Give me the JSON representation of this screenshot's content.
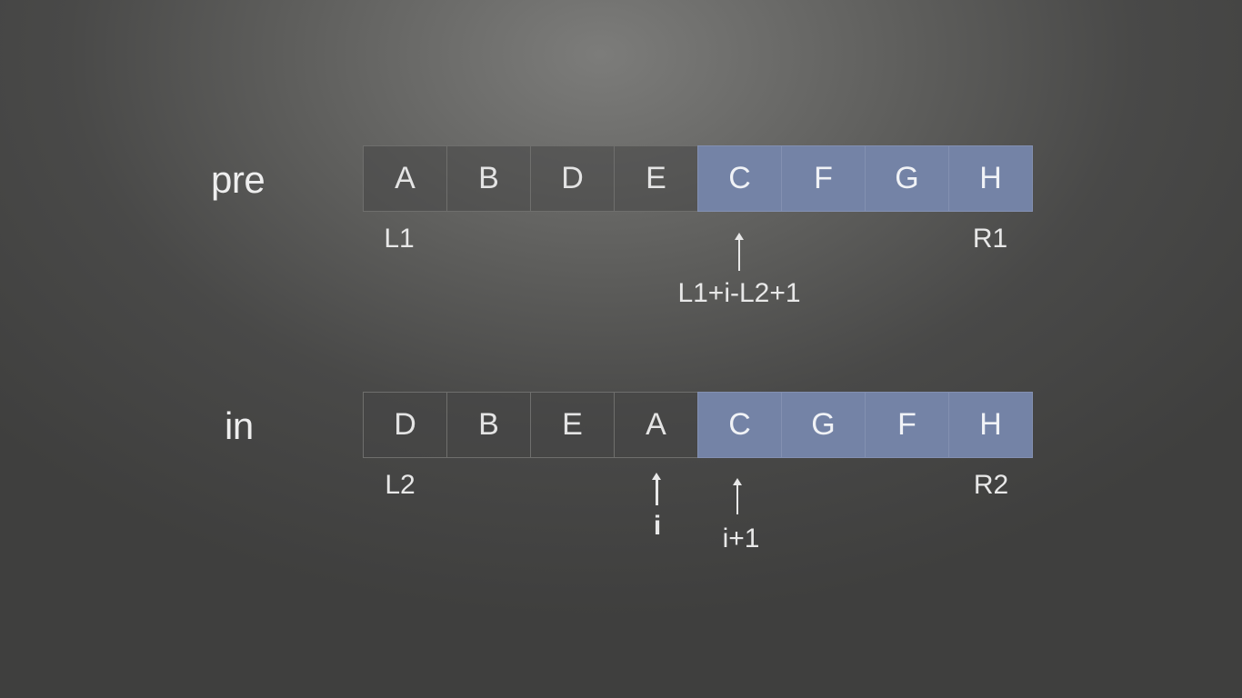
{
  "pre_row": {
    "label": "pre",
    "cells": [
      {
        "text": "A",
        "style": "dark"
      },
      {
        "text": "B",
        "style": "dark"
      },
      {
        "text": "D",
        "style": "dark"
      },
      {
        "text": "E",
        "style": "dark"
      },
      {
        "text": "C",
        "style": "blue"
      },
      {
        "text": "F",
        "style": "blue"
      },
      {
        "text": "G",
        "style": "blue"
      },
      {
        "text": "H",
        "style": "blue"
      }
    ],
    "start_label": "L1",
    "end_label": "R1",
    "pointer_label": "L1+i-L2+1"
  },
  "in_row": {
    "label": "in",
    "cells": [
      {
        "text": "D",
        "style": "dark"
      },
      {
        "text": "B",
        "style": "dark"
      },
      {
        "text": "E",
        "style": "dark"
      },
      {
        "text": "A",
        "style": "dark"
      },
      {
        "text": "C",
        "style": "blue"
      },
      {
        "text": "G",
        "style": "blue"
      },
      {
        "text": "F",
        "style": "blue"
      },
      {
        "text": "H",
        "style": "blue"
      }
    ],
    "start_label": "L2",
    "end_label": "R2",
    "pointer_i_label": "i",
    "pointer_i1_label": "i+1"
  },
  "colors": {
    "highlight": "#7483a6",
    "cell": "#464645"
  }
}
